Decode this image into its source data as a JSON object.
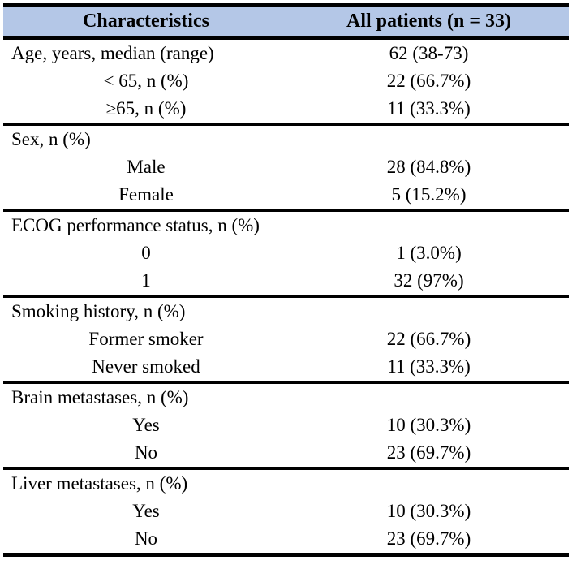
{
  "table": {
    "header": {
      "characteristics": "Characteristics",
      "all_patients": "All patients (n = 33)"
    },
    "colors": {
      "header_bg": "#b4c7e7",
      "rule": "#000000",
      "text": "#000000",
      "background": "#ffffff"
    },
    "sections": [
      {
        "rows": [
          {
            "label": "Age, years, median (range)",
            "value": "62 (38-73)"
          },
          {
            "label": "< 65, n (%)",
            "value": "22 (66.7%)"
          },
          {
            "label": "≥65, n (%)",
            "value": "11 (33.3%)"
          }
        ]
      },
      {
        "rows": [
          {
            "label": "Sex, n (%)",
            "value": ""
          },
          {
            "label": "Male",
            "value": "28 (84.8%)"
          },
          {
            "label": "Female",
            "value": "5 (15.2%)"
          }
        ]
      },
      {
        "rows": [
          {
            "label": "ECOG performance status, n (%)",
            "value": ""
          },
          {
            "label": "0",
            "value": "1 (3.0%)"
          },
          {
            "label": "1",
            "value": "32 (97%)"
          }
        ]
      },
      {
        "rows": [
          {
            "label": "Smoking history, n (%)",
            "value": ""
          },
          {
            "label": "Former smoker",
            "value": "22 (66.7%)"
          },
          {
            "label": "Never smoked",
            "value": "11 (33.3%)"
          }
        ]
      },
      {
        "rows": [
          {
            "label": "Brain metastases, n (%)",
            "value": ""
          },
          {
            "label": "Yes",
            "value": "10 (30.3%)"
          },
          {
            "label": "No",
            "value": "23 (69.7%)"
          }
        ]
      },
      {
        "rows": [
          {
            "label": "Liver metastases, n (%)",
            "value": ""
          },
          {
            "label": "Yes",
            "value": "10 (30.3%)"
          },
          {
            "label": "No",
            "value": "23 (69.7%)"
          }
        ]
      }
    ]
  }
}
